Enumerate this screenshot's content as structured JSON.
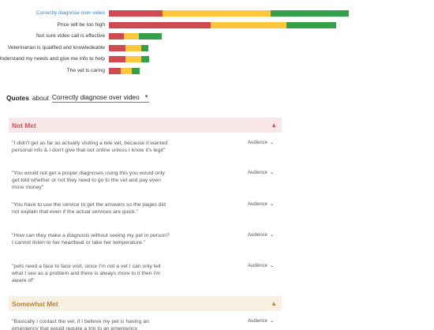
{
  "chart_data": {
    "type": "bar",
    "stacked": true,
    "orientation": "horizontal",
    "colors": [
      "#d04a52",
      "#fcc73a",
      "#35a04a"
    ],
    "categories": [
      "Correctly diagnose over video",
      "Price will be too high",
      "Not sure video call is effective",
      "Veterinarian is qualified and knowledeable",
      "Understand my needs and give me info to help",
      "The vet is caring"
    ],
    "series": [
      {
        "values": [
          68,
          129,
          19,
          21,
          21,
          15
        ]
      },
      {
        "values": [
          137,
          96,
          19,
          20,
          20,
          14
        ]
      },
      {
        "values": [
          99,
          63,
          29,
          9,
          10,
          10
        ]
      }
    ],
    "active_category": 0,
    "grid": false,
    "legend": "none"
  },
  "quotes": {
    "title": "Quotes",
    "about": "about",
    "selected": "Correctly diagnose over video"
  },
  "sections": [
    {
      "label": "Not Met",
      "items": [
        {
          "text": "\"I didn't get as far as actually visiting a tele vet, because it wanted personal info & I don't give that out online unless I know it's legit\"",
          "audience": "Audience"
        },
        {
          "text": "\"You would not get a proper diagnoses using this you would only get told whether or not they need to go to the vet and pay even more money\"",
          "audience": "Audience"
        },
        {
          "text": "\"You have to use the service to get the answers so the pages did not explain that even if the actual services are quick.\"",
          "audience": "Audience"
        },
        {
          "text": "\"How can they make a diagnosis without seeing my pet in person? I cannot listen to her heartbeat or take her temperature.\"",
          "audience": "Audience"
        },
        {
          "text": "\"pets need a face to face visit, since I'm not a vet I can only tell what I see as a problem and there is always more to it then i'm aware of\"",
          "audience": "Audience"
        }
      ]
    },
    {
      "label": "Somewhat Met",
      "items": [
        {
          "text": "\"Basically I contact the vet, if I believe my pet is having an emergency that would require a trip to an emergency",
          "audience": "Audience"
        }
      ]
    }
  ]
}
